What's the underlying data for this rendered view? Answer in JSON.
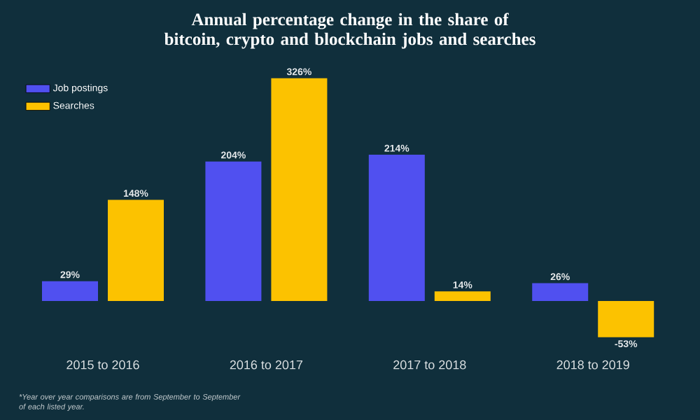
{
  "chart_data": {
    "type": "bar",
    "title": "Annual percentage change in the share of bitcoin, crypto and blockchain jobs and searches",
    "categories": [
      "2015 to 2016",
      "2016 to 2017",
      "2017 to 2018",
      "2018 to 2019"
    ],
    "series": [
      {
        "name": "Job postings",
        "color": "#5050f0",
        "values": [
          29,
          204,
          214,
          26
        ],
        "value_labels": [
          "29%",
          "204%",
          "214%",
          "26%"
        ]
      },
      {
        "name": "Searches",
        "color": "#fcc200",
        "values": [
          148,
          326,
          14,
          -53
        ],
        "value_labels": [
          "148%",
          "326%",
          "14%",
          "-53%"
        ]
      }
    ],
    "legend": "top left",
    "annotations": [
      "*Year over year comparisons are from September to September of each listed year."
    ]
  }
}
